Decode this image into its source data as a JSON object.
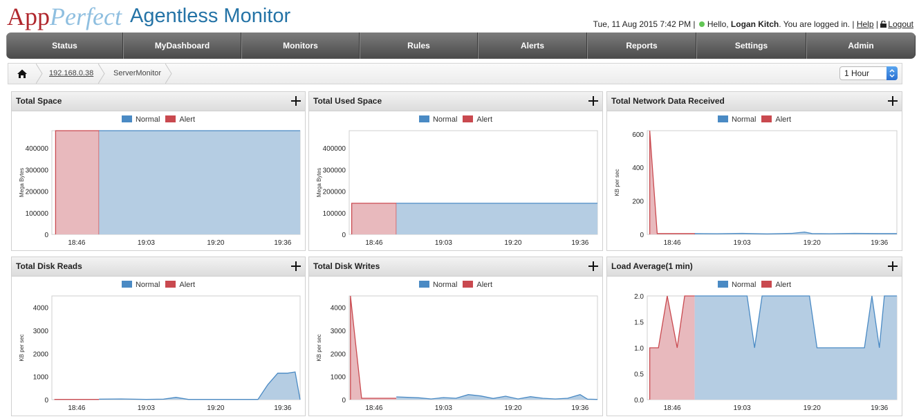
{
  "header": {
    "logo_app": "App",
    "logo_perfect": "Perfect",
    "product": "Agentless Monitor",
    "datetime": "Tue, 11 Aug 2015 7:42 PM",
    "greeting": "Hello,",
    "user": "Logan Kitch",
    "logged_in": ". You are logged in.",
    "help": "Help",
    "logout": "Logout",
    "status_color": "#62c655"
  },
  "nav": {
    "items": [
      {
        "label": "Status",
        "active": true
      },
      {
        "label": "MyDashboard",
        "active": false
      },
      {
        "label": "Monitors",
        "active": false
      },
      {
        "label": "Rules",
        "active": false
      },
      {
        "label": "Alerts",
        "active": false
      },
      {
        "label": "Reports",
        "active": false
      },
      {
        "label": "Settings",
        "active": false
      },
      {
        "label": "Admin",
        "active": false
      }
    ]
  },
  "breadcrumb": {
    "host": "192.168.0.38",
    "monitor": "ServerMonitor",
    "time_range": "1 Hour"
  },
  "legend": {
    "normal": "Normal",
    "alert": "Alert",
    "normal_color": "#4a8ac4",
    "alert_color": "#c9494f"
  },
  "chart_data": [
    {
      "type": "area",
      "title": "Total Space",
      "ylabel": "Mega Bytes",
      "ylim": [
        0,
        480000
      ],
      "yticks": [
        0,
        100000,
        200000,
        300000,
        400000
      ],
      "ytick_labels": [
        "0",
        "100000",
        "200000",
        "300000",
        "400000"
      ],
      "xlim": [
        18.67,
        19.67
      ],
      "xticks": [
        18.77,
        19.05,
        19.33,
        19.6
      ],
      "xtick_labels": [
        "18:46",
        "19:03",
        "19:20",
        "19:36"
      ],
      "series": [
        {
          "name": "Alert",
          "x": [
            18.685,
            18.685,
            18.86,
            18.86
          ],
          "y": [
            0,
            480000,
            480000,
            0
          ]
        },
        {
          "name": "Normal",
          "x": [
            18.86,
            19.67
          ],
          "y": [
            480000,
            480000
          ]
        }
      ]
    },
    {
      "type": "area",
      "title": "Total Used Space",
      "ylabel": "Mega Bytes",
      "ylim": [
        0,
        480000
      ],
      "yticks": [
        0,
        100000,
        200000,
        300000,
        400000
      ],
      "ytick_labels": [
        "0",
        "100000",
        "200000",
        "300000",
        "400000"
      ],
      "xlim": [
        18.67,
        19.67
      ],
      "xticks": [
        18.77,
        19.05,
        19.33,
        19.6
      ],
      "xtick_labels": [
        "18:46",
        "19:03",
        "19:20",
        "19:36"
      ],
      "series": [
        {
          "name": "Alert",
          "x": [
            18.68,
            18.68,
            18.86,
            18.86
          ],
          "y": [
            0,
            144000,
            144000,
            0
          ]
        },
        {
          "name": "Normal",
          "x": [
            18.86,
            19.67
          ],
          "y": [
            144000,
            144000
          ]
        }
      ]
    },
    {
      "type": "area",
      "title": "Total Network Data Received",
      "ylabel": "KB per sec",
      "ylim": [
        0,
        620
      ],
      "yticks": [
        0,
        200,
        400,
        600
      ],
      "ytick_labels": [
        "0",
        "200",
        "400",
        "600"
      ],
      "xlim": [
        18.67,
        19.67
      ],
      "xticks": [
        18.77,
        19.05,
        19.33,
        19.6
      ],
      "xtick_labels": [
        "18:46",
        "19:03",
        "19:20",
        "19:36"
      ],
      "series": [
        {
          "name": "Alert",
          "x": [
            18.68,
            18.68,
            18.71,
            18.86,
            18.86
          ],
          "y": [
            0,
            620,
            5,
            5,
            0
          ]
        },
        {
          "name": "Normal",
          "x": [
            18.86,
            18.95,
            19.05,
            19.15,
            19.25,
            19.3,
            19.33,
            19.4,
            19.5,
            19.6,
            19.67
          ],
          "y": [
            5,
            4,
            6,
            3,
            6,
            14,
            5,
            4,
            6,
            5,
            5
          ]
        }
      ]
    },
    {
      "type": "area",
      "title": "Total Disk Reads",
      "ylabel": "KB per sec",
      "ylim": [
        0,
        4500
      ],
      "yticks": [
        0,
        1000,
        2000,
        3000,
        4000
      ],
      "ytick_labels": [
        "0",
        "1000",
        "2000",
        "3000",
        "4000"
      ],
      "xlim": [
        18.67,
        19.67
      ],
      "xticks": [
        18.77,
        19.05,
        19.33,
        19.6
      ],
      "xtick_labels": [
        "18:46",
        "19:03",
        "19:20",
        "19:36"
      ],
      "series": [
        {
          "name": "Alert",
          "x": [
            18.68,
            18.86
          ],
          "y": [
            10,
            10
          ]
        },
        {
          "name": "Normal",
          "x": [
            18.86,
            18.95,
            19.05,
            19.12,
            19.17,
            19.22,
            19.3,
            19.4,
            19.5,
            19.54,
            19.58,
            19.62,
            19.65,
            19.67
          ],
          "y": [
            20,
            30,
            10,
            20,
            100,
            10,
            10,
            10,
            10,
            650,
            1150,
            1150,
            1200,
            0
          ]
        }
      ]
    },
    {
      "type": "area",
      "title": "Total Disk Writes",
      "ylabel": "KB per sec",
      "ylim": [
        0,
        4500
      ],
      "yticks": [
        0,
        1000,
        2000,
        3000,
        4000
      ],
      "ytick_labels": [
        "0",
        "1000",
        "2000",
        "3000",
        "4000"
      ],
      "xlim": [
        18.67,
        19.67
      ],
      "xticks": [
        18.77,
        19.05,
        19.33,
        19.6
      ],
      "xtick_labels": [
        "18:46",
        "19:03",
        "19:20",
        "19:36"
      ],
      "series": [
        {
          "name": "Alert",
          "x": [
            18.675,
            18.675,
            18.72,
            18.86
          ],
          "y": [
            0,
            4500,
            60,
            60
          ]
        },
        {
          "name": "Normal",
          "x": [
            18.86,
            18.95,
            19.0,
            19.05,
            19.1,
            19.15,
            19.2,
            19.25,
            19.3,
            19.35,
            19.4,
            19.45,
            19.5,
            19.55,
            19.6,
            19.63,
            19.67
          ],
          "y": [
            120,
            80,
            30,
            90,
            60,
            220,
            160,
            50,
            150,
            30,
            130,
            60,
            30,
            60,
            220,
            20,
            10
          ]
        }
      ]
    },
    {
      "type": "area",
      "title": "Load Average(1 min)",
      "ylabel": "",
      "ylim": [
        0,
        2.0
      ],
      "yticks": [
        0,
        0.5,
        1.0,
        1.5,
        2.0
      ],
      "ytick_labels": [
        "0.0",
        "0.5",
        "1.0",
        "1.5",
        "2.0"
      ],
      "xlim": [
        18.67,
        19.67
      ],
      "xticks": [
        18.77,
        19.05,
        19.33,
        19.6
      ],
      "xtick_labels": [
        "18:46",
        "19:03",
        "19:20",
        "19:36"
      ],
      "series": [
        {
          "name": "Alert",
          "x": [
            18.68,
            18.68,
            18.715,
            18.75,
            18.79,
            18.82,
            18.86
          ],
          "y": [
            0,
            1.0,
            1.0,
            2.0,
            1.0,
            2.0,
            2.0
          ]
        },
        {
          "name": "Normal",
          "x": [
            18.86,
            19.07,
            19.1,
            19.13,
            19.32,
            19.35,
            19.54,
            19.57,
            19.6,
            19.62,
            19.67
          ],
          "y": [
            2.0,
            2.0,
            1.0,
            2.0,
            2.0,
            1.0,
            1.0,
            2.0,
            1.0,
            2.0,
            2.0
          ]
        }
      ]
    }
  ]
}
